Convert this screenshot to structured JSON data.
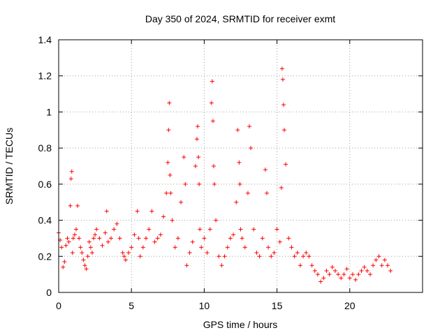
{
  "chart_data": {
    "type": "scatter",
    "title": "Day 350 of 2024, SRMTID for receiver exmt",
    "xlabel": "GPS time / hours",
    "ylabel": "SRMTID / TECUs",
    "xlim": [
      0,
      25
    ],
    "ylim": [
      0,
      1.4
    ],
    "xticks": [
      0,
      5,
      10,
      15,
      20
    ],
    "xtick_labels": [
      "0",
      "5",
      "10",
      "15",
      "20"
    ],
    "yticks": [
      0,
      0.2,
      0.4,
      0.6,
      0.8,
      1,
      1.2,
      1.4
    ],
    "ytick_labels": [
      "0",
      "0.2",
      "0.4",
      "0.6",
      "0.8",
      "1",
      "1.2",
      "1.4"
    ],
    "grid": true,
    "marker": "+",
    "color": "#ff0000",
    "series": [
      {
        "name": "exmt",
        "x": [
          0.0,
          0.1,
          0.2,
          0.3,
          0.4,
          0.5,
          0.6,
          0.7,
          0.8,
          0.85,
          0.9,
          0.95,
          1.0,
          1.1,
          1.2,
          1.3,
          1.4,
          1.5,
          1.6,
          1.7,
          1.8,
          1.9,
          2.0,
          2.1,
          2.2,
          2.3,
          2.4,
          2.5,
          2.6,
          2.8,
          3.0,
          3.2,
          3.3,
          3.4,
          3.6,
          3.8,
          4.0,
          4.2,
          4.4,
          4.5,
          4.6,
          4.8,
          5.0,
          5.2,
          5.4,
          5.5,
          5.6,
          5.8,
          6.0,
          6.2,
          6.4,
          6.6,
          6.8,
          7.0,
          7.2,
          7.4,
          7.5,
          7.55,
          7.6,
          7.65,
          7.7,
          7.8,
          8.0,
          8.2,
          8.4,
          8.6,
          8.7,
          8.8,
          9.0,
          9.2,
          9.4,
          9.5,
          9.55,
          9.6,
          9.65,
          9.7,
          9.8,
          10.0,
          10.2,
          10.4,
          10.5,
          10.55,
          10.6,
          10.65,
          10.7,
          10.8,
          11.0,
          11.2,
          11.4,
          11.6,
          11.8,
          12.0,
          12.2,
          12.3,
          12.4,
          12.45,
          12.5,
          12.6,
          12.8,
          13.0,
          13.1,
          13.2,
          13.4,
          13.6,
          13.8,
          14.0,
          14.2,
          14.3,
          14.4,
          14.6,
          14.8,
          15.0,
          15.2,
          15.3,
          15.35,
          15.4,
          15.45,
          15.5,
          15.6,
          15.8,
          16.0,
          16.2,
          16.4,
          16.6,
          16.8,
          17.0,
          17.2,
          17.4,
          17.6,
          17.8,
          18.0,
          18.2,
          18.4,
          18.6,
          18.8,
          19.0,
          19.2,
          19.4,
          19.6,
          19.8,
          20.0,
          20.2,
          20.4,
          20.6,
          20.8,
          21.0,
          21.2,
          21.4,
          21.6,
          21.8,
          22.0,
          22.2,
          22.4,
          22.6,
          22.8
        ],
        "y": [
          0.33,
          0.29,
          0.25,
          0.14,
          0.17,
          0.26,
          0.3,
          0.28,
          0.48,
          0.63,
          0.67,
          0.22,
          0.3,
          0.32,
          0.35,
          0.48,
          0.3,
          0.25,
          0.22,
          0.18,
          0.15,
          0.13,
          0.2,
          0.28,
          0.25,
          0.22,
          0.3,
          0.32,
          0.35,
          0.3,
          0.26,
          0.33,
          0.45,
          0.28,
          0.3,
          0.35,
          0.38,
          0.3,
          0.22,
          0.2,
          0.18,
          0.22,
          0.25,
          0.32,
          0.45,
          0.3,
          0.2,
          0.25,
          0.3,
          0.35,
          0.45,
          0.28,
          0.3,
          0.32,
          0.42,
          0.55,
          0.72,
          0.9,
          1.05,
          0.65,
          0.55,
          0.4,
          0.25,
          0.3,
          0.5,
          0.75,
          0.6,
          0.15,
          0.22,
          0.28,
          0.7,
          0.85,
          0.92,
          0.75,
          0.6,
          0.35,
          0.25,
          0.3,
          0.22,
          0.35,
          1.05,
          1.17,
          0.95,
          0.7,
          0.6,
          0.4,
          0.2,
          0.15,
          0.2,
          0.25,
          0.3,
          0.32,
          0.5,
          0.9,
          0.72,
          0.6,
          0.35,
          0.3,
          0.25,
          0.55,
          0.92,
          0.8,
          0.35,
          0.22,
          0.2,
          0.3,
          0.68,
          0.55,
          0.25,
          0.2,
          0.22,
          0.35,
          0.28,
          0.58,
          1.24,
          1.18,
          1.04,
          0.9,
          0.71,
          0.3,
          0.25,
          0.2,
          0.22,
          0.15,
          0.2,
          0.22,
          0.2,
          0.15,
          0.12,
          0.1,
          0.06,
          0.08,
          0.12,
          0.1,
          0.14,
          0.12,
          0.1,
          0.08,
          0.1,
          0.13,
          0.08,
          0.1,
          0.07,
          0.1,
          0.12,
          0.14,
          0.12,
          0.1,
          0.15,
          0.18,
          0.2,
          0.15,
          0.18,
          0.15,
          0.12
        ]
      }
    ]
  }
}
